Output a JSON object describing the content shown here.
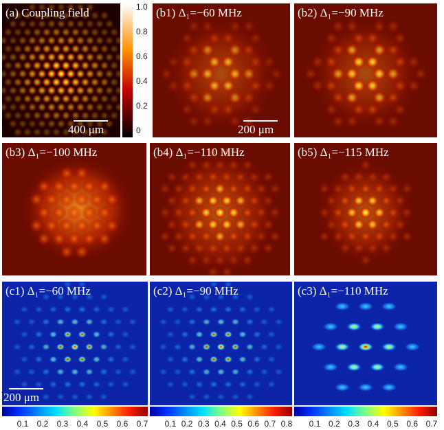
{
  "panels": [
    {
      "label": "(a) Coupling  field",
      "scale_bar": "400 μm"
    },
    {
      "label": "(b1) Δ₁=−60 MHz",
      "scale_bar": "200 μm"
    },
    {
      "label": "(b2) Δ₁=−90 MHz"
    },
    {
      "label": "(b3) Δ₁=−100 MHz"
    },
    {
      "label": "(b4) Δ₁=−110 MHz"
    },
    {
      "label": "(b5) Δ₁=−115 MHz"
    },
    {
      "label": "(c1) Δ₁=−60 MHz",
      "scale_bar": "200 μm"
    },
    {
      "label": "(c2) Δ₁=−90 MHz"
    },
    {
      "label": "(c3) Δ₁=−110 MHz"
    }
  ],
  "colorbars": [
    {
      "ticks": [
        "1.0",
        "0.8",
        "0.6",
        "0.4",
        "0.2",
        "0"
      ]
    },
    {
      "ticks": [
        "0.1",
        "0.2",
        "0.3",
        "0.4",
        "0.5",
        "0.6",
        "0.7"
      ]
    },
    {
      "ticks": [
        "0.1",
        "0.2",
        "0.3",
        "0.4",
        "0.5",
        "0.6",
        "0.7",
        "0.8"
      ]
    },
    {
      "ticks": [
        "0.1",
        "0.2",
        "0.3",
        "0.4",
        "0.5",
        "0.6",
        "0.7"
      ]
    }
  ]
}
